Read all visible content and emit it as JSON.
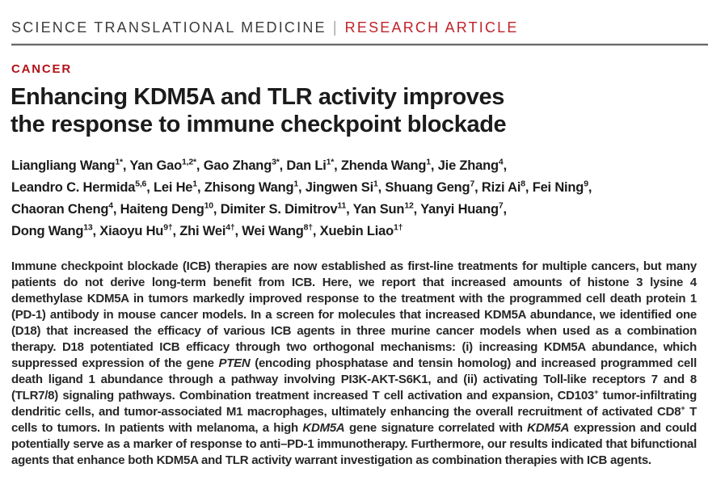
{
  "masthead": {
    "journal": "SCIENCE TRANSLATIONAL MEDICINE",
    "divider": "|",
    "article_type": "RESEARCH ARTICLE"
  },
  "section_label": "CANCER",
  "title_lines": [
    "Enhancing KDM5A and TLR activity improves",
    "the response to immune checkpoint blockade"
  ],
  "authors": {
    "lines": [
      [
        {
          "name": "Liangliang Wang",
          "sup": "1*"
        },
        {
          "name": "Yan Gao",
          "sup": "1,2*"
        },
        {
          "name": "Gao Zhang",
          "sup": "3*"
        },
        {
          "name": "Dan Li",
          "sup": "1*"
        },
        {
          "name": "Zhenda Wang",
          "sup": "1"
        },
        {
          "name": "Jie Zhang",
          "sup": "4"
        }
      ],
      [
        {
          "name": "Leandro C. Hermida",
          "sup": "5,6"
        },
        {
          "name": "Lei He",
          "sup": "1"
        },
        {
          "name": "Zhisong Wang",
          "sup": "1"
        },
        {
          "name": "Jingwen Si",
          "sup": "1"
        },
        {
          "name": "Shuang Geng",
          "sup": "7"
        },
        {
          "name": "Rizi Ai",
          "sup": "8"
        },
        {
          "name": "Fei Ning",
          "sup": "9"
        }
      ],
      [
        {
          "name": "Chaoran Cheng",
          "sup": "4"
        },
        {
          "name": "Haiteng Deng",
          "sup": "10"
        },
        {
          "name": "Dimiter S. Dimitrov",
          "sup": "11"
        },
        {
          "name": "Yan Sun",
          "sup": "12"
        },
        {
          "name": "Yanyi Huang",
          "sup": "7"
        }
      ],
      [
        {
          "name": "Dong Wang",
          "sup": "13"
        },
        {
          "name": "Xiaoyu Hu",
          "sup": "9†"
        },
        {
          "name": "Zhi Wei",
          "sup": "4†"
        },
        {
          "name": "Wei Wang",
          "sup": "8†"
        },
        {
          "name": "Xuebin Liao",
          "sup": "1†"
        }
      ]
    ],
    "line_end_separator": ","
  },
  "abstract_segments": [
    {
      "style": "plain",
      "text": "Immune checkpoint blockade (ICB) therapies are now established as first-line treatments for multiple cancers, but many patients do not derive long-term benefit from ICB. Here, we report that increased amounts of histone 3 lysine 4 demethylase KDM5A in tumors markedly improved response to the treatment with the programmed cell death protein 1 (PD-1) antibody in mouse cancer models. In a screen for molecules that increased KDM5A abundance, we identified one (D18) that increased the efficacy of various ICB agents in three murine cancer models when used as a combination therapy. D18 potentiated ICB efficacy through two orthogonal mechanisms: (i) increasing KDM5A abundance, which suppressed expression of the gene "
    },
    {
      "style": "italic",
      "text": "PTEN"
    },
    {
      "style": "plain",
      "text": " (encoding phosphatase and tensin homolog) and increased programmed cell death ligand 1 abundance through a pathway involving PI3K-AKT-S6K1, and (ii) activating Toll-like receptors 7 and 8 (TLR7/8) signaling pathways. Combination treatment increased T cell activation and expansion, CD103"
    },
    {
      "style": "sup",
      "text": "+"
    },
    {
      "style": "plain",
      "text": " tumor-infiltrating dendritic cells, and tumor-associated M1 macrophages, ultimately enhancing the overall recruitment of activated CD8"
    },
    {
      "style": "sup",
      "text": "+"
    },
    {
      "style": "plain",
      "text": " T cells to tumors. In patients with melanoma, a high "
    },
    {
      "style": "italic",
      "text": "KDM5A"
    },
    {
      "style": "plain",
      "text": " gene signature correlated with "
    },
    {
      "style": "italic",
      "text": "KDM5A"
    },
    {
      "style": "plain",
      "text": " expression and could potentially serve as a marker of response to anti–PD-1 immunotherapy. Furthermore, our results indicated that bifunctional agents that enhance both KDM5A and TLR activity warrant investigation as combination therapies with ICB agents."
    }
  ],
  "colors": {
    "accent_red": "#c0232b",
    "section_red": "#b2121a",
    "rule_gray": "#6a6a6a",
    "text_dark": "#1b1b1b"
  }
}
